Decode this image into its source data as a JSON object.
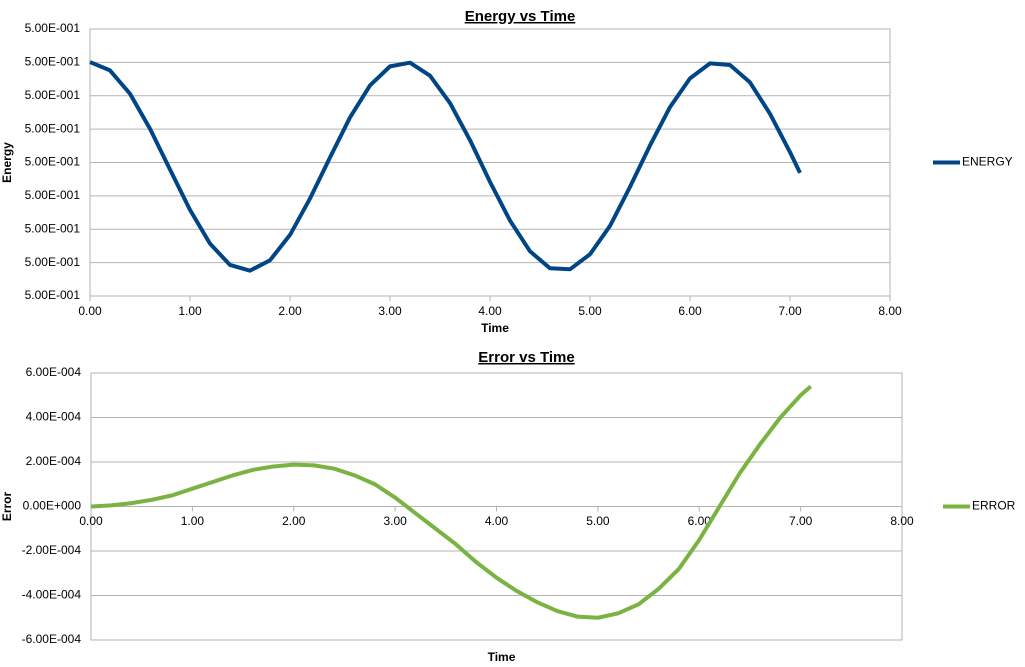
{
  "chart_data": [
    {
      "type": "line",
      "title": "Energy vs Time",
      "x_label": "Time",
      "y_label": "Energy",
      "x": [
        0,
        0.2,
        0.4,
        0.6,
        0.8,
        1.0,
        1.2,
        1.4,
        1.6,
        1.8,
        2.0,
        2.2,
        2.4,
        2.6,
        2.8,
        3.0,
        3.2,
        3.4,
        3.6,
        3.8,
        4.0,
        4.2,
        4.4,
        4.6,
        4.8,
        5.0,
        5.2,
        5.4,
        5.6,
        5.8,
        6.0,
        6.2,
        6.4,
        6.6,
        6.8,
        7.0,
        7.1
      ],
      "series": [
        {
          "name": "ENERGY",
          "color": "#004586",
          "values": [
            0.5000301,
            0.5000276,
            0.5000206,
            0.5000101,
            0.4999979,
            0.4999858,
            0.4999757,
            0.4999693,
            0.4999676,
            0.4999707,
            0.4999783,
            0.4999892,
            0.5000015,
            0.5000135,
            0.5000231,
            0.5000288,
            0.5000299,
            0.500026,
            0.5000178,
            0.5000067,
            0.4999942,
            0.4999826,
            0.4999734,
            0.4999683,
            0.499968,
            0.4999725,
            0.499981,
            0.4999927,
            0.5000051,
            0.5000166,
            0.5000252,
            0.5000297,
            0.5000292,
            0.500024,
            0.5000146,
            0.5000031,
            0.4999969
          ]
        }
      ],
      "xlim": [
        0,
        8
      ],
      "xticks": [
        {
          "value": 0,
          "label": "0.00"
        },
        {
          "value": 1,
          "label": "1.00"
        },
        {
          "value": 2,
          "label": "2.00"
        },
        {
          "value": 3,
          "label": "3.00"
        },
        {
          "value": 4,
          "label": "4.00"
        },
        {
          "value": 5,
          "label": "5.00"
        },
        {
          "value": 6,
          "label": "6.00"
        },
        {
          "value": 7,
          "label": "7.00"
        },
        {
          "value": 8,
          "label": "8.00"
        }
      ],
      "ylim": [
        0.49996,
        0.50004
      ],
      "yticks": [
        {
          "value": 0.49996,
          "label": "5.00E-001"
        },
        {
          "value": 0.49997,
          "label": "5.00E-001"
        },
        {
          "value": 0.49998,
          "label": "5.00E-001"
        },
        {
          "value": 0.49999,
          "label": "5.00E-001"
        },
        {
          "value": 0.5,
          "label": "5.00E-001"
        },
        {
          "value": 0.50001,
          "label": "5.00E-001"
        },
        {
          "value": 0.50002,
          "label": "5.00E-001"
        },
        {
          "value": 0.50003,
          "label": "5.00E-001"
        },
        {
          "value": 0.50004,
          "label": "5.00E-001"
        }
      ],
      "grid": true,
      "legend": "right"
    },
    {
      "type": "line",
      "title": "Error vs Time",
      "x_label": "Time",
      "y_label": "Error",
      "x": [
        0,
        0.2,
        0.4,
        0.6,
        0.8,
        1.0,
        1.2,
        1.4,
        1.6,
        1.8,
        2.0,
        2.2,
        2.4,
        2.6,
        2.8,
        3.0,
        3.2,
        3.4,
        3.6,
        3.8,
        4.0,
        4.2,
        4.4,
        4.6,
        4.8,
        5.0,
        5.2,
        5.4,
        5.6,
        5.8,
        6.0,
        6.2,
        6.4,
        6.6,
        6.8,
        7.0,
        7.1
      ],
      "series": [
        {
          "name": "ERROR",
          "color": "#7ab342",
          "values": [
            0,
            5e-06,
            1.5e-05,
            3e-05,
            5e-05,
            8e-05,
            0.00011,
            0.00014,
            0.000165,
            0.00018,
            0.000188,
            0.000185,
            0.00017,
            0.00014,
            0.0001,
            4e-05,
            -3e-05,
            -0.0001,
            -0.00017,
            -0.00025,
            -0.00032,
            -0.00038,
            -0.00043,
            -0.00047,
            -0.000495,
            -0.0005,
            -0.00048,
            -0.00044,
            -0.00037,
            -0.00028,
            -0.00015,
            0,
            0.00015,
            0.00028,
            0.0004,
            0.0005,
            0.00054
          ]
        }
      ],
      "xlim": [
        0,
        8
      ],
      "xticks": [
        {
          "value": 0,
          "label": "0.00"
        },
        {
          "value": 1,
          "label": "1.00"
        },
        {
          "value": 2,
          "label": "2.00"
        },
        {
          "value": 3,
          "label": "3.00"
        },
        {
          "value": 4,
          "label": "4.00"
        },
        {
          "value": 5,
          "label": "5.00"
        },
        {
          "value": 6,
          "label": "6.00"
        },
        {
          "value": 7,
          "label": "7.00"
        },
        {
          "value": 8,
          "label": "8.00"
        }
      ],
      "ylim": [
        -0.0006,
        0.0006
      ],
      "yticks": [
        {
          "value": -0.0006,
          "label": "-6.00E-004"
        },
        {
          "value": -0.0004,
          "label": "-4.00E-004"
        },
        {
          "value": -0.0002,
          "label": "-2.00E-004"
        },
        {
          "value": 0,
          "label": "0.00E+000"
        },
        {
          "value": 0.0002,
          "label": "2.00E-004"
        },
        {
          "value": 0.0004,
          "label": "4.00E-004"
        },
        {
          "value": 0.0006,
          "label": "6.00E-004"
        }
      ],
      "grid": true,
      "legend": "right"
    }
  ]
}
